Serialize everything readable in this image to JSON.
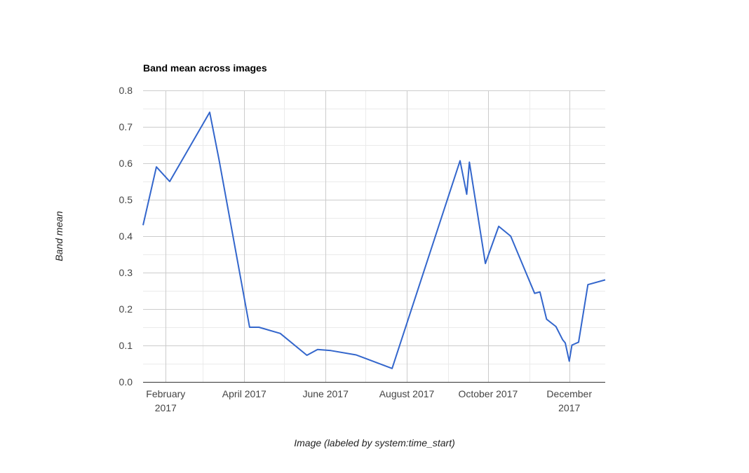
{
  "chart_data": {
    "type": "line",
    "title": "Band mean across images",
    "xlabel": "Image (labeled by system:time_start)",
    "ylabel": "Band mean",
    "ylim": [
      0,
      0.8
    ],
    "yticks": [
      "0.0",
      "0.1",
      "0.2",
      "0.3",
      "0.4",
      "0.5",
      "0.6",
      "0.7",
      "0.8"
    ],
    "xlim": [
      "2017-01-15",
      "2017-12-28"
    ],
    "xticks": [
      {
        "date": "2017-02-01",
        "lines": [
          "February",
          "2017"
        ]
      },
      {
        "date": "2017-04-01",
        "lines": [
          "April 2017"
        ]
      },
      {
        "date": "2017-06-01",
        "lines": [
          "June 2017"
        ]
      },
      {
        "date": "2017-08-01",
        "lines": [
          "August 2017"
        ]
      },
      {
        "date": "2017-10-01",
        "lines": [
          "October 2017"
        ]
      },
      {
        "date": "2017-12-01",
        "lines": [
          "December",
          "2017"
        ]
      }
    ],
    "grid": true,
    "color": "#3366cc",
    "series": [
      {
        "x": [
          "2017-01-15",
          "2017-01-25",
          "2017-02-04",
          "2017-03-06",
          "2017-03-13",
          "2017-04-05",
          "2017-04-12",
          "2017-04-28",
          "2017-05-18",
          "2017-05-26",
          "2017-06-05",
          "2017-06-24",
          "2017-07-21",
          "2017-09-10",
          "2017-09-15",
          "2017-09-17",
          "2017-09-29",
          "2017-10-09",
          "2017-10-18",
          "2017-11-05",
          "2017-11-09",
          "2017-11-14",
          "2017-11-21",
          "2017-11-26",
          "2017-11-28",
          "2017-12-01",
          "2017-12-03",
          "2017-12-08",
          "2017-12-15",
          "2017-12-28"
        ],
        "values": [
          0.43,
          0.59,
          0.55,
          0.74,
          0.61,
          0.15,
          0.15,
          0.133,
          0.073,
          0.089,
          0.086,
          0.074,
          0.037,
          0.607,
          0.515,
          0.603,
          0.325,
          0.427,
          0.4,
          0.243,
          0.247,
          0.172,
          0.152,
          0.116,
          0.107,
          0.057,
          0.101,
          0.109,
          0.267,
          0.28
        ]
      }
    ]
  }
}
